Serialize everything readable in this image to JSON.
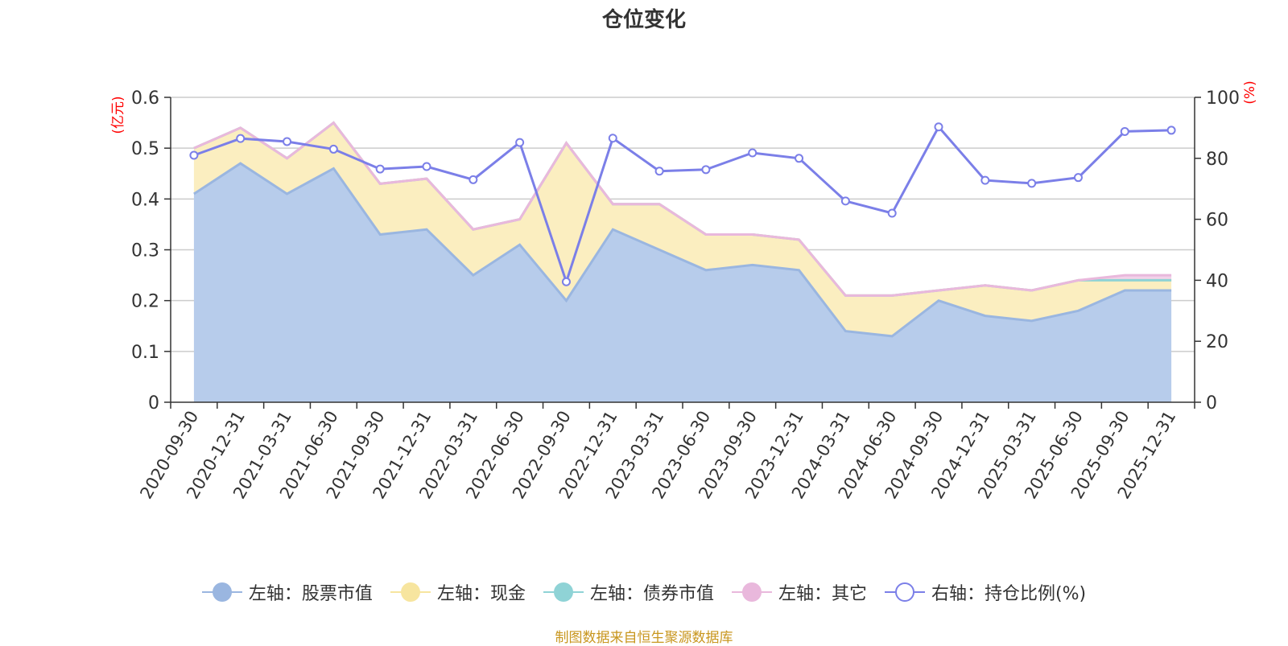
{
  "chart_data": {
    "type": "area",
    "title": "仓位变化",
    "categories": [
      "2020-09-30",
      "2020-12-31",
      "2021-03-31",
      "2021-06-30",
      "2021-09-30",
      "2021-12-31",
      "2022-03-31",
      "2022-06-30",
      "2022-09-30",
      "2022-12-31",
      "2023-03-31",
      "2023-06-30",
      "2023-09-30",
      "2023-12-31",
      "2024-03-31",
      "2024-06-30",
      "2024-09-30",
      "2024-12-31",
      "2025-03-31",
      "2025-06-30",
      "2025-09-30",
      "2025-12-31"
    ],
    "left_axis": {
      "label": "(亿元)",
      "ylim": [
        0,
        0.6
      ],
      "ticks": [
        "0",
        "0.1",
        "0.2",
        "0.3",
        "0.4",
        "0.5",
        "0.6"
      ]
    },
    "right_axis": {
      "label": "(%)",
      "ylim": [
        0,
        100
      ],
      "ticks": [
        "0",
        "20",
        "40",
        "60",
        "80",
        "100"
      ]
    },
    "series": [
      {
        "name": "左轴：股票市值",
        "axis": "left",
        "type": "area",
        "color": "#9ab6e0",
        "fill": "#b7cceb",
        "values": [
          0.41,
          0.47,
          0.41,
          0.46,
          0.33,
          0.34,
          0.25,
          0.31,
          0.2,
          0.34,
          0.3,
          0.26,
          0.27,
          0.26,
          0.14,
          0.13,
          0.2,
          0.17,
          0.16,
          0.18,
          0.22,
          0.22
        ]
      },
      {
        "name": "左轴：现金",
        "axis": "left",
        "type": "area",
        "color": "#f7e59f",
        "fill": "#fbeec0",
        "values": [
          0.09,
          0.07,
          0.07,
          0.09,
          0.1,
          0.1,
          0.09,
          0.05,
          0.31,
          0.05,
          0.09,
          0.07,
          0.06,
          0.06,
          0.07,
          0.08,
          0.02,
          0.06,
          0.06,
          0.06,
          0.02,
          0.02
        ]
      },
      {
        "name": "左轴：债券市值",
        "axis": "left",
        "type": "area",
        "color": "#8fd3d6",
        "fill": "#c4e8ea",
        "values": [
          0,
          0,
          0,
          0,
          0,
          0,
          0,
          0,
          0,
          0,
          0,
          0,
          0,
          0,
          0,
          0,
          0,
          0,
          0,
          0,
          0,
          0
        ]
      },
      {
        "name": "左轴：其它",
        "axis": "left",
        "type": "area",
        "color": "#e9b8dc",
        "fill": "#f2d2ea",
        "values": [
          0,
          0,
          0,
          0,
          0,
          0,
          0,
          0,
          0,
          0,
          0,
          0,
          0,
          0,
          0,
          0,
          0,
          0,
          0,
          0,
          0.01,
          0.01
        ]
      },
      {
        "name": "右轴：持仓比例(%)",
        "axis": "right",
        "type": "line",
        "color": "#7b7fe8",
        "values": [
          81,
          86.5,
          85.5,
          83,
          76.5,
          77.3,
          73,
          85.2,
          39.5,
          86.6,
          75.8,
          76.3,
          81.8,
          80,
          66,
          62,
          90.3,
          72.8,
          71.8,
          73.7,
          88.8,
          89.2
        ]
      }
    ],
    "legend_position": "bottom",
    "source": "制图数据来自恒生聚源数据库"
  }
}
